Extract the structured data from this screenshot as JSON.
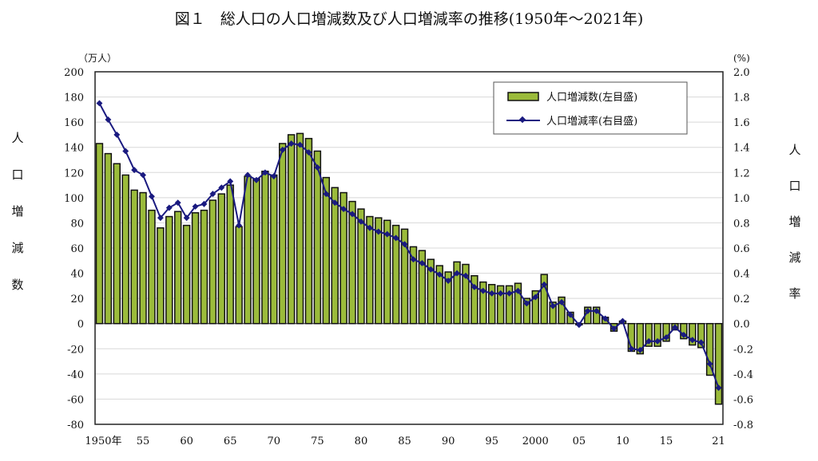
{
  "chart_data": {
    "type": "bar+line",
    "title": "図１　総人口の人口増減数及び人口増減率の推移(1950年～2021年)",
    "left_unit": "（万人）",
    "right_unit": "(%)",
    "ylabel_left": "人口増減数",
    "ylabel_right": "人口増減率",
    "ylim_left": [
      -80,
      200
    ],
    "ylim_right": [
      -0.8,
      2.0
    ],
    "yticks_left": [
      "200",
      "180",
      "160",
      "140",
      "120",
      "100",
      "80",
      "60",
      "40",
      "20",
      "0",
      "-20",
      "-40",
      "-60",
      "-80"
    ],
    "yticks_right": [
      "2.0",
      "1.8",
      "1.6",
      "1.4",
      "1.2",
      "1.0",
      "0.8",
      "0.6",
      "0.4",
      "0.2",
      "0.0",
      "-0.2",
      "-0.4",
      "-0.6",
      "-0.8"
    ],
    "xtick_labels": [
      {
        "year": 1950,
        "label": "1950年"
      },
      {
        "year": 1955,
        "label": "55"
      },
      {
        "year": 1960,
        "label": "60"
      },
      {
        "year": 1965,
        "label": "65"
      },
      {
        "year": 1970,
        "label": "70"
      },
      {
        "year": 1975,
        "label": "75"
      },
      {
        "year": 1980,
        "label": "80"
      },
      {
        "year": 1985,
        "label": "85"
      },
      {
        "year": 1990,
        "label": "90"
      },
      {
        "year": 1995,
        "label": "95"
      },
      {
        "year": 2000,
        "label": "2000"
      },
      {
        "year": 2005,
        "label": "05"
      },
      {
        "year": 2010,
        "label": "10"
      },
      {
        "year": 2015,
        "label": "15"
      },
      {
        "year": 2021,
        "label": "21"
      }
    ],
    "grid": true,
    "legend_position": "top-right",
    "series": [
      {
        "name": "人口増減数(左目盛)",
        "type": "bar",
        "axis": "left",
        "color": "#9bbb3b",
        "values": [
          143,
          135,
          127,
          118,
          106,
          104,
          90,
          76,
          85,
          89,
          78,
          88,
          90,
          98,
          103,
          110,
          77,
          117,
          115,
          121,
          118,
          143,
          150,
          151,
          147,
          137,
          116,
          108,
          104,
          97,
          91,
          85,
          84,
          82,
          78,
          75,
          61,
          58,
          51,
          46,
          41,
          49,
          47,
          38,
          33,
          31,
          30,
          30,
          32,
          20,
          26,
          39,
          17,
          21,
          9,
          -1,
          13,
          13,
          5,
          -6,
          2,
          -22,
          -24,
          -18,
          -18,
          -14,
          -5,
          -12,
          -17,
          -19,
          -41,
          -64
        ]
      },
      {
        "name": "人口増減率(右目盛)",
        "type": "line",
        "axis": "right",
        "color": "#1a1a80",
        "values": [
          1.75,
          1.62,
          1.5,
          1.37,
          1.22,
          1.18,
          1.01,
          0.84,
          0.92,
          0.96,
          0.84,
          0.93,
          0.95,
          1.03,
          1.08,
          1.13,
          0.78,
          1.18,
          1.14,
          1.2,
          1.17,
          1.38,
          1.43,
          1.42,
          1.36,
          1.24,
          1.03,
          0.96,
          0.91,
          0.87,
          0.81,
          0.76,
          0.73,
          0.71,
          0.68,
          0.63,
          0.51,
          0.48,
          0.43,
          0.39,
          0.34,
          0.4,
          0.38,
          0.29,
          0.26,
          0.24,
          0.24,
          0.24,
          0.26,
          0.16,
          0.21,
          0.31,
          0.14,
          0.17,
          0.07,
          -0.01,
          0.1,
          0.1,
          0.04,
          -0.04,
          0.02,
          -0.2,
          -0.21,
          -0.14,
          -0.14,
          -0.11,
          -0.03,
          -0.09,
          -0.13,
          -0.15,
          -0.32,
          -0.51
        ]
      }
    ],
    "start_year": 1950
  }
}
